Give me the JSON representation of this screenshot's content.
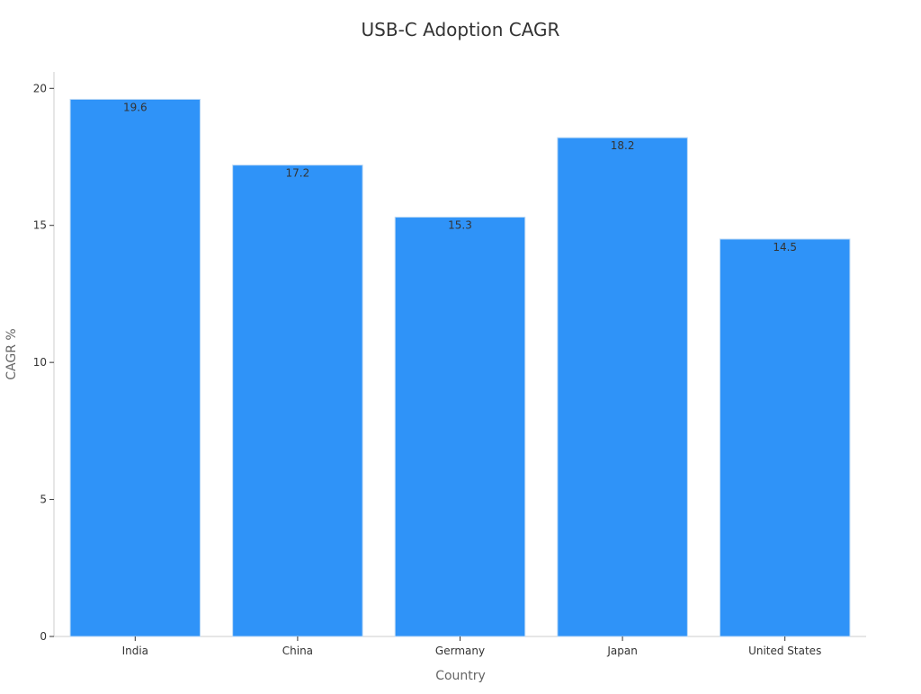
{
  "chart_data": {
    "type": "bar",
    "title": "USB-C Adoption CAGR",
    "xlabel": "Country",
    "ylabel": "CAGR %",
    "categories": [
      "India",
      "China",
      "Germany",
      "Japan",
      "United States"
    ],
    "values": [
      19.6,
      17.2,
      15.3,
      18.2,
      14.5
    ],
    "data_labels": [
      "19.6",
      "17.2",
      "15.3",
      "18.2",
      "14.5"
    ],
    "ylim": [
      0,
      20.6
    ],
    "yticks": [
      0,
      5,
      10,
      15,
      20
    ],
    "grid": false,
    "colors": {
      "bar": "#2f93f8",
      "bar_edge": "#bcd9f5",
      "axis": "#cccccc",
      "text": "#333333",
      "label": "#666666"
    }
  }
}
